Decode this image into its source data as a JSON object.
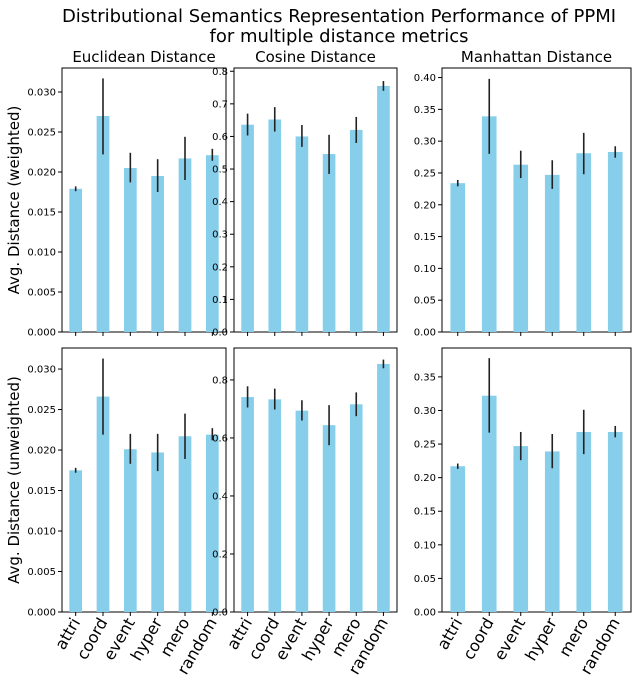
{
  "chart_data": {
    "type": "bar",
    "title": "Distributional Semantics Representation Performance of PPMI",
    "subtitle": "for multiple distance metrics",
    "categories": [
      "attri",
      "coord",
      "event",
      "hyper",
      "mero",
      "random"
    ],
    "columns": [
      "Euclidean Distance",
      "Cosine Distance",
      "Manhattan Distance"
    ],
    "rows": [
      "Avg. Distance (weighted)",
      "Avg. Distance (unweighted)"
    ],
    "bar_color": "#87ceeb",
    "error_color": "#222222",
    "grid": false,
    "panels": [
      {
        "row": 0,
        "col": 0,
        "ylim": [
          0,
          0.033
        ],
        "yticks": [
          "0.000",
          "0.005",
          "0.010",
          "0.015",
          "0.020",
          "0.025",
          "0.030"
        ],
        "values": [
          0.0179,
          0.027,
          0.0205,
          0.0195,
          0.0217,
          0.0221
        ],
        "err_low": [
          0.0176,
          0.0222,
          0.0187,
          0.0175,
          0.019,
          0.0214
        ],
        "err_high": [
          0.0182,
          0.0317,
          0.0224,
          0.0216,
          0.0244,
          0.0229
        ]
      },
      {
        "row": 0,
        "col": 1,
        "ylim": [
          0,
          0.81
        ],
        "yticks": [
          "0.0",
          "0.1",
          "0.2",
          "0.3",
          "0.4",
          "0.5",
          "0.6",
          "0.7",
          "0.8"
        ],
        "values": [
          0.636,
          0.652,
          0.6,
          0.546,
          0.62,
          0.755
        ],
        "err_low": [
          0.603,
          0.615,
          0.568,
          0.485,
          0.58,
          0.74
        ],
        "err_high": [
          0.67,
          0.69,
          0.635,
          0.605,
          0.66,
          0.77
        ]
      },
      {
        "row": 0,
        "col": 2,
        "ylim": [
          0,
          0.415
        ],
        "yticks": [
          "0.00",
          "0.05",
          "0.10",
          "0.15",
          "0.20",
          "0.25",
          "0.30",
          "0.35",
          "0.40"
        ],
        "values": [
          0.234,
          0.339,
          0.263,
          0.247,
          0.281,
          0.283
        ],
        "err_low": [
          0.229,
          0.28,
          0.242,
          0.225,
          0.248,
          0.274
        ],
        "err_high": [
          0.239,
          0.398,
          0.285,
          0.27,
          0.313,
          0.292
        ]
      },
      {
        "row": 1,
        "col": 0,
        "ylim": [
          0,
          0.0326
        ],
        "yticks": [
          "0.000",
          "0.005",
          "0.010",
          "0.015",
          "0.020",
          "0.025",
          "0.030"
        ],
        "values": [
          0.0175,
          0.0266,
          0.0201,
          0.0197,
          0.0217,
          0.0219
        ],
        "err_low": [
          0.0172,
          0.0219,
          0.0183,
          0.0174,
          0.0189,
          0.0212
        ],
        "err_high": [
          0.0178,
          0.0313,
          0.022,
          0.022,
          0.0245,
          0.0227
        ]
      },
      {
        "row": 1,
        "col": 1,
        "ylim": [
          0,
          0.91
        ],
        "yticks": [
          "0.0",
          "0.2",
          "0.4",
          "0.6",
          "0.8"
        ],
        "values": [
          0.741,
          0.733,
          0.694,
          0.644,
          0.716,
          0.855
        ],
        "err_low": [
          0.705,
          0.698,
          0.66,
          0.575,
          0.675,
          0.84
        ],
        "err_high": [
          0.778,
          0.77,
          0.73,
          0.713,
          0.757,
          0.87
        ]
      },
      {
        "row": 1,
        "col": 2,
        "ylim": [
          0,
          0.393
        ],
        "yticks": [
          "0.00",
          "0.05",
          "0.10",
          "0.15",
          "0.20",
          "0.25",
          "0.30",
          "0.35"
        ],
        "values": [
          0.217,
          0.322,
          0.247,
          0.239,
          0.268,
          0.268
        ],
        "err_low": [
          0.213,
          0.267,
          0.226,
          0.214,
          0.235,
          0.26
        ],
        "err_high": [
          0.221,
          0.378,
          0.268,
          0.265,
          0.301,
          0.277
        ]
      }
    ]
  }
}
